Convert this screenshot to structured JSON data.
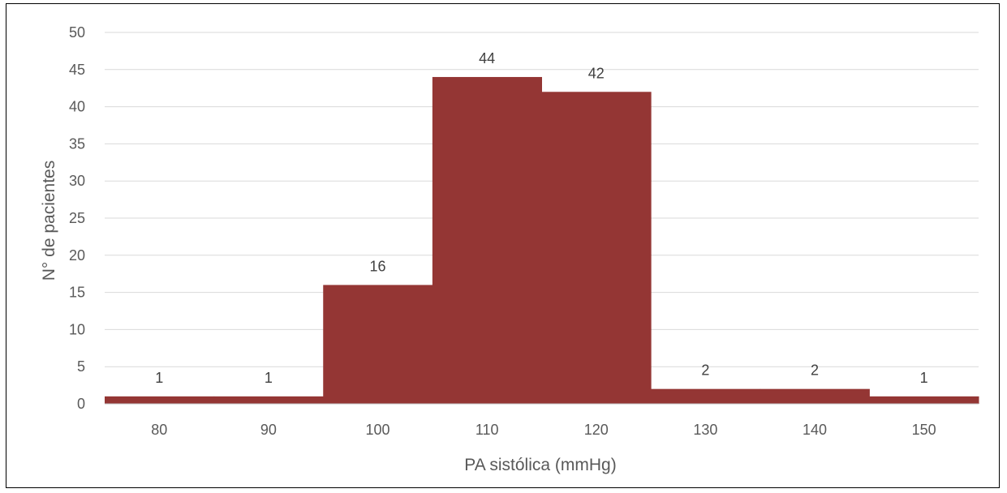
{
  "chart_data": {
    "type": "bar",
    "categories": [
      "80",
      "90",
      "100",
      "110",
      "120",
      "130",
      "140",
      "150"
    ],
    "values": [
      1,
      1,
      16,
      44,
      42,
      2,
      2,
      1
    ],
    "title": "",
    "xlabel": "PA sistólica (mmHg)",
    "ylabel": "N° de pacientes",
    "ylim": [
      0,
      50
    ],
    "yticks": [
      0,
      5,
      10,
      15,
      20,
      25,
      30,
      35,
      40,
      45,
      50
    ],
    "grid": true,
    "legend": "none",
    "data_labels": true,
    "bar_gap": 0,
    "colors": {
      "bar": "#943634",
      "grid": "#d9d9d9",
      "axis": "#bfbfbf"
    }
  }
}
